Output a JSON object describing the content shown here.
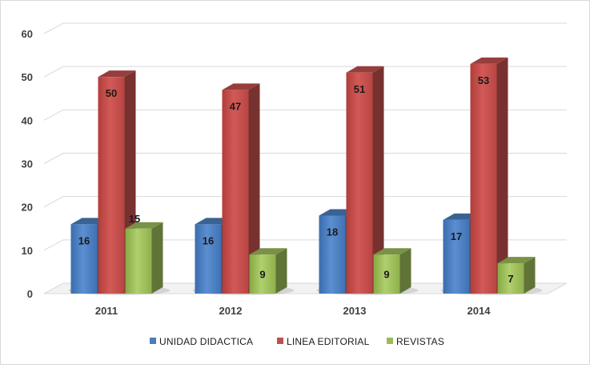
{
  "chart_data": {
    "type": "bar",
    "title": "",
    "xlabel": "",
    "ylabel": "",
    "categories": [
      "2011",
      "2012",
      "2013",
      "2014"
    ],
    "series": [
      {
        "name": "UNIDAD DIDACTICA",
        "values": [
          16,
          16,
          18,
          17
        ],
        "color": "#4a7ebb"
      },
      {
        "name": "LINEA EDITORIAL",
        "values": [
          50,
          47,
          51,
          53
        ],
        "color": "#c0504d"
      },
      {
        "name": "REVISTAS",
        "values": [
          15,
          9,
          9,
          7
        ],
        "color": "#9bbb59"
      }
    ],
    "ylim": [
      0,
      60
    ],
    "yticks": [
      0,
      10,
      20,
      30,
      40,
      50,
      60
    ],
    "grid": true,
    "style": "3d-clustered-column",
    "legend_position": "bottom"
  }
}
